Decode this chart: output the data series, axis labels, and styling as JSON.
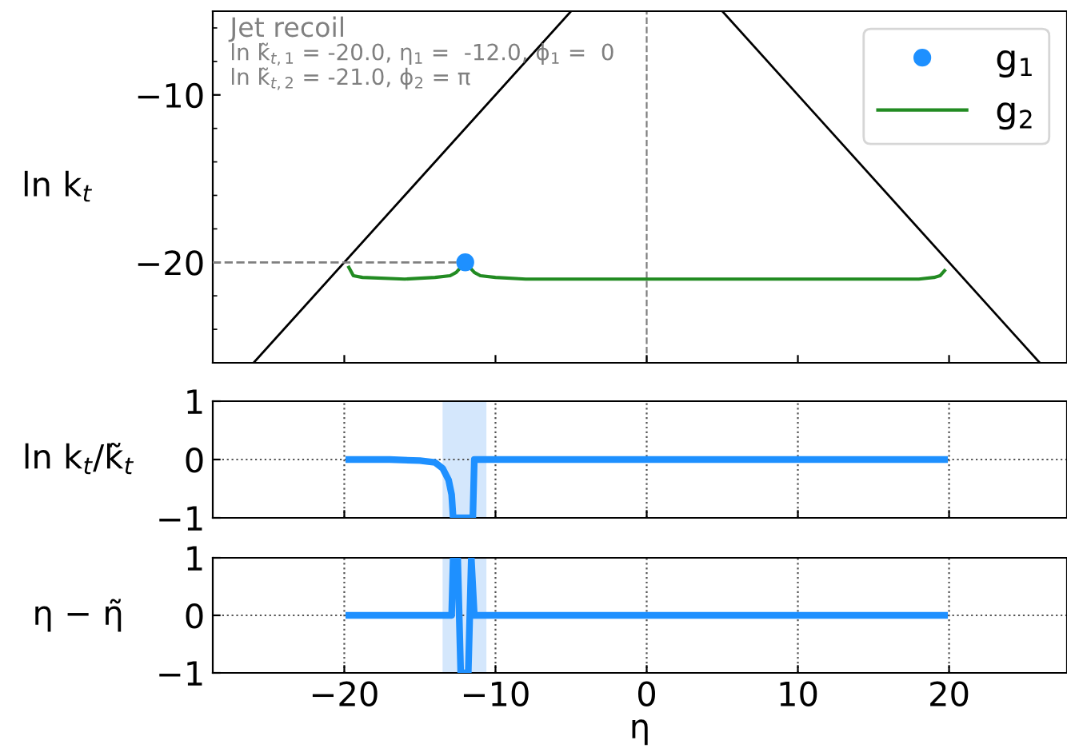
{
  "chart_data": [
    {
      "type": "line",
      "ylabel": "ln k$_{t}$",
      "annotations": [
        "Jet recoil",
        "ln k̃$_{t,1}$ = -20.0, η$_{1}$ =  -12.0, ϕ$_{1}$ =  0",
        "ln k̃$_{t,2}$ = -21.0, ϕ$_{2}$ = π"
      ],
      "xlim": [
        -28.7,
        27.8
      ],
      "ylim": [
        -26,
        -5
      ],
      "xticks": [
        -20,
        -10,
        0,
        10,
        20
      ],
      "yticks": [
        -20,
        -10
      ],
      "tick_labels": "y",
      "grid": false,
      "legend": "top right",
      "ref_lines": [
        {
          "axis": "x",
          "value": 0,
          "color": "#808080",
          "line_style": "dashed"
        }
      ],
      "series": [
        {
          "type": "line",
          "color": "#000000",
          "x": [
            -26.0,
            -5.0
          ],
          "values": [
            -26.0,
            -5.0
          ]
        },
        {
          "type": "line",
          "color": "#000000",
          "x": [
            5.0,
            26.0
          ],
          "values": [
            -5.0,
            -26.0
          ]
        },
        {
          "type": "line",
          "color": "#808080",
          "line_style": "dashed",
          "x": [
            -28.7,
            -12.0
          ],
          "values": [
            -20.0,
            -20.0
          ]
        },
        {
          "type": "scatter",
          "name": "g$_{1}$",
          "color": "#1e90ff",
          "marker": "circle",
          "x": [
            -12.0
          ],
          "values": [
            -20.0
          ]
        },
        {
          "type": "line",
          "name": "g$_{2}$",
          "color": "#228b22",
          "x": [
            -19.7,
            -19.4,
            -18.8,
            -16.0,
            -14.0,
            -13.0,
            -12.6,
            -12.3,
            -12.0,
            -11.7,
            -11.4,
            -11.0,
            -10.0,
            -8.0,
            0.0,
            10.0,
            18.0,
            19.0,
            19.4,
            19.7
          ],
          "values": [
            -20.3,
            -20.8,
            -20.9,
            -21.0,
            -20.9,
            -20.8,
            -20.6,
            -20.3,
            -20.0,
            -20.3,
            -20.6,
            -20.8,
            -20.9,
            -21.0,
            -21.0,
            -21.0,
            -21.0,
            -20.9,
            -20.8,
            -20.5
          ]
        }
      ]
    },
    {
      "type": "line",
      "ylabel": "ln k$_{t}$/k̃$_{t}$",
      "xlim": [
        -28.7,
        27.8
      ],
      "ylim": [
        -1,
        1
      ],
      "xticks": [
        -20,
        -10,
        0,
        10,
        20
      ],
      "yticks": [
        -1,
        0,
        1
      ],
      "tick_labels": "y",
      "grid": true,
      "bands": [
        {
          "axis": "x",
          "from": -13.5,
          "to": -10.6,
          "color": "#d4e7fc"
        }
      ],
      "series": [
        {
          "color": "#1e90ff",
          "x": [
            -19.7,
            -17.0,
            -15.0,
            -14.0,
            -13.5,
            -13.1,
            -12.9,
            -12.8,
            -11.5,
            -11.4,
            19.7
          ],
          "values": [
            0,
            0,
            -0.02,
            -0.05,
            -0.15,
            -0.35,
            -0.6,
            -1,
            -1,
            0,
            0
          ]
        }
      ]
    },
    {
      "type": "line",
      "ylabel": "η − η̃",
      "xlabel": "η",
      "xlim": [
        -28.7,
        27.8
      ],
      "ylim": [
        -1,
        1
      ],
      "xticks": [
        -20,
        -10,
        0,
        10,
        20
      ],
      "yticks": [
        -1,
        0,
        1
      ],
      "grid": true,
      "bands": [
        {
          "axis": "x",
          "from": -13.5,
          "to": -10.6,
          "color": "#d4e7fc"
        }
      ],
      "series": [
        {
          "color": "#1e90ff",
          "x": [
            -19.7,
            -12.9,
            -12.8,
            -12.5,
            -12.3,
            -11.8,
            -11.6,
            -11.4,
            19.7
          ],
          "values": [
            0,
            0,
            1,
            1,
            -1,
            -1,
            1,
            0,
            0
          ]
        }
      ]
    }
  ]
}
